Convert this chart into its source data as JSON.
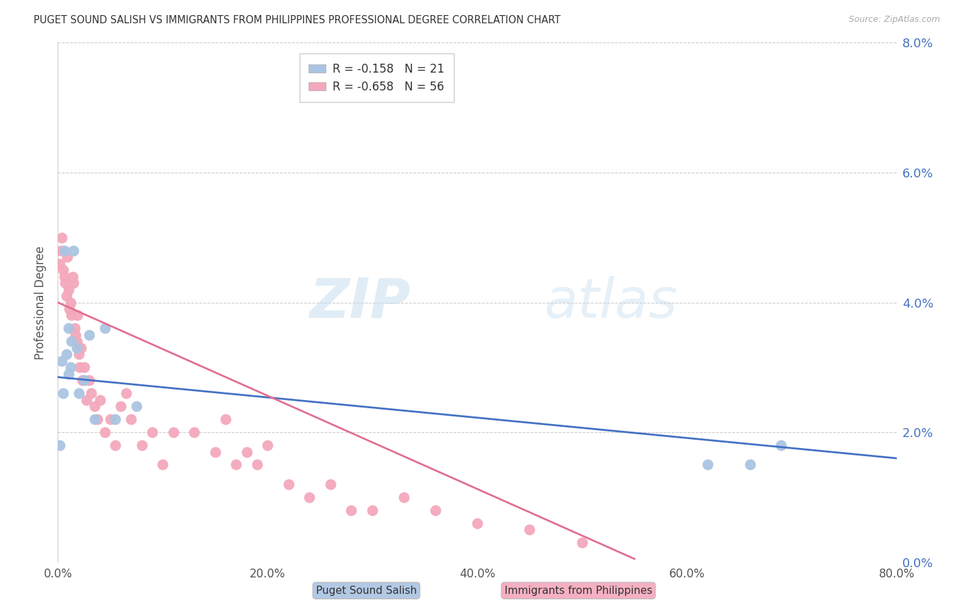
{
  "title": "PUGET SOUND SALISH VS IMMIGRANTS FROM PHILIPPINES PROFESSIONAL DEGREE CORRELATION CHART",
  "source": "Source: ZipAtlas.com",
  "ylabel": "Professional Degree",
  "y_tick_values": [
    0.0,
    2.0,
    4.0,
    6.0,
    8.0
  ],
  "x_tick_values": [
    0.0,
    20.0,
    40.0,
    60.0,
    80.0
  ],
  "xlim": [
    0.0,
    80.0
  ],
  "ylim": [
    0.0,
    8.0
  ],
  "watermark_zip": "ZIP",
  "watermark_atlas": "atlas",
  "series1_label": "Puget Sound Salish",
  "series1_R": "-0.158",
  "series1_N": "21",
  "series1_color": "#aac4e2",
  "series1_line_color": "#4472c4",
  "series2_label": "Immigrants from Philippines",
  "series2_R": "-0.658",
  "series2_N": "56",
  "series2_color": "#f4a8bc",
  "series2_line_color": "#e07090",
  "series1_x": [
    0.2,
    0.4,
    0.5,
    0.6,
    0.8,
    1.0,
    1.0,
    1.2,
    1.3,
    1.5,
    1.8,
    2.0,
    2.5,
    3.0,
    3.5,
    4.5,
    5.5,
    7.5,
    62.0,
    66.0,
    69.0
  ],
  "series1_y": [
    1.8,
    3.1,
    2.6,
    4.8,
    3.2,
    2.9,
    3.6,
    3.0,
    3.4,
    4.8,
    3.3,
    2.6,
    2.8,
    3.5,
    2.2,
    3.6,
    2.2,
    2.4,
    1.5,
    1.5,
    1.8
  ],
  "series2_x": [
    0.2,
    0.3,
    0.4,
    0.5,
    0.6,
    0.7,
    0.8,
    0.9,
    1.0,
    1.1,
    1.2,
    1.3,
    1.4,
    1.5,
    1.6,
    1.7,
    1.8,
    1.9,
    2.0,
    2.1,
    2.2,
    2.3,
    2.5,
    2.7,
    3.0,
    3.2,
    3.5,
    3.8,
    4.0,
    4.5,
    5.0,
    5.5,
    6.0,
    6.5,
    7.0,
    8.0,
    9.0,
    10.0,
    11.0,
    13.0,
    15.0,
    16.0,
    17.0,
    18.0,
    19.0,
    20.0,
    22.0,
    24.0,
    26.0,
    28.0,
    30.0,
    33.0,
    36.0,
    40.0,
    45.0,
    50.0
  ],
  "series2_y": [
    4.6,
    4.8,
    5.0,
    4.5,
    4.4,
    4.3,
    4.1,
    4.7,
    4.2,
    3.9,
    4.0,
    3.8,
    4.4,
    4.3,
    3.6,
    3.5,
    3.4,
    3.8,
    3.2,
    3.0,
    3.3,
    2.8,
    3.0,
    2.5,
    2.8,
    2.6,
    2.4,
    2.2,
    2.5,
    2.0,
    2.2,
    1.8,
    2.4,
    2.6,
    2.2,
    1.8,
    2.0,
    1.5,
    2.0,
    2.0,
    1.7,
    2.2,
    1.5,
    1.7,
    1.5,
    1.8,
    1.2,
    1.0,
    1.2,
    0.8,
    0.8,
    1.0,
    0.8,
    0.6,
    0.5,
    0.3
  ],
  "reg1_x0": 0.0,
  "reg1_y0": 2.85,
  "reg1_x1": 80.0,
  "reg1_y1": 1.6,
  "reg2_x0": 0.0,
  "reg2_y0": 4.0,
  "reg2_x1": 55.0,
  "reg2_y1": 0.05
}
